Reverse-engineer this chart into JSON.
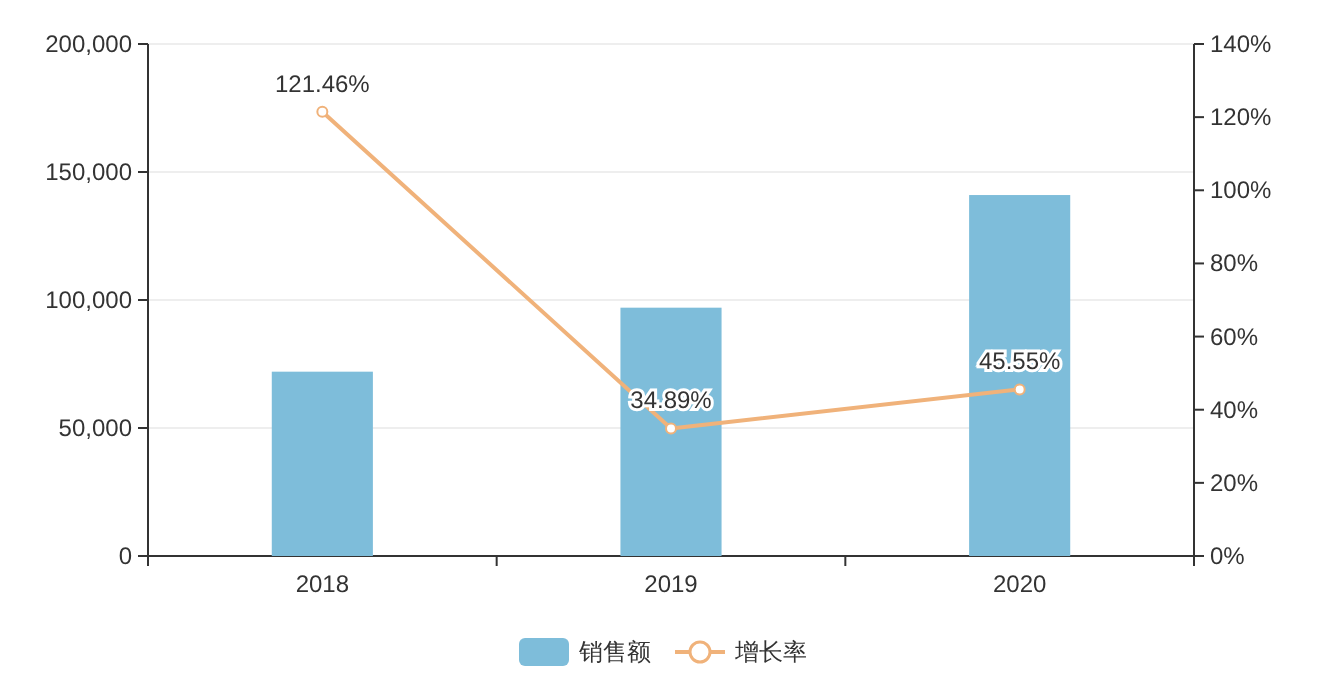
{
  "chart_data": {
    "type": "bar",
    "categories": [
      "2018",
      "2019",
      "2020"
    ],
    "series": [
      {
        "name": "销售额",
        "color": "#7ebdda",
        "values": [
          72000,
          97000,
          141000
        ]
      },
      {
        "name": "增长率",
        "type": "line",
        "axis": "y2",
        "color": "#f0b27a",
        "marker": "circle",
        "values": [
          121.46,
          34.89,
          45.55
        ],
        "value_labels": [
          "121.46%",
          "34.89%",
          "45.55%"
        ]
      }
    ],
    "ylim": [
      0,
      200000
    ],
    "yticks": [
      {
        "value": 0,
        "label": "0"
      },
      {
        "value": 50000,
        "label": "50,000"
      },
      {
        "value": 100000,
        "label": "100,000"
      },
      {
        "value": 150000,
        "label": "150,000"
      },
      {
        "value": 200000,
        "label": "200,000"
      }
    ],
    "y2lim": [
      0,
      140
    ],
    "y2ticks": [
      {
        "value": 0,
        "label": "0%"
      },
      {
        "value": 20,
        "label": "20%"
      },
      {
        "value": 40,
        "label": "40%"
      },
      {
        "value": 60,
        "label": "60%"
      },
      {
        "value": 80,
        "label": "80%"
      },
      {
        "value": 100,
        "label": "100%"
      },
      {
        "value": 120,
        "label": "120%"
      },
      {
        "value": 140,
        "label": "140%"
      }
    ],
    "grid": "y",
    "legend": "bottom"
  }
}
